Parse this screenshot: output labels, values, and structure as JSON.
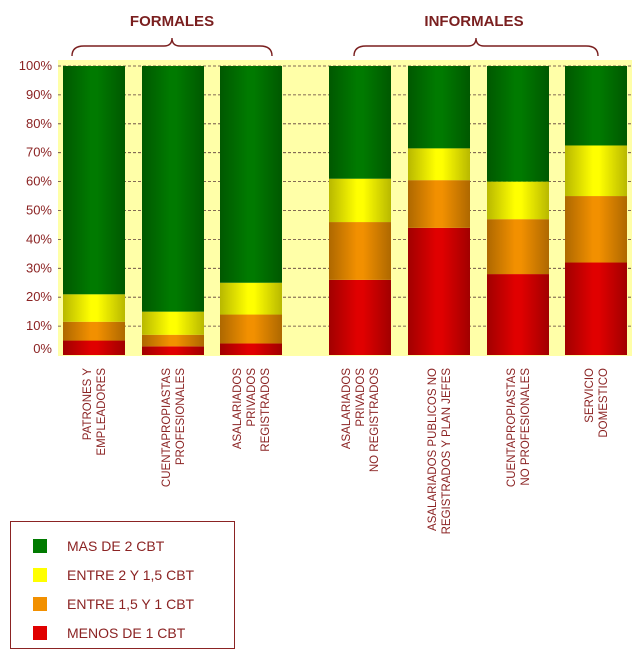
{
  "chart_data": {
    "type": "bar",
    "stacked": true,
    "groups": [
      {
        "label": "FORMALES",
        "categories": [
          0,
          1,
          2
        ]
      },
      {
        "label": "INFORMALES",
        "categories": [
          3,
          4,
          5,
          6
        ]
      }
    ],
    "categories": [
      [
        "PATRONES Y",
        "EMPLEADORES"
      ],
      [
        "CUENTAPROPIASTAS",
        "PROFESIONALES"
      ],
      [
        "ASALARIADOS",
        "PRIVADOS",
        "REGISTRADOS"
      ],
      [
        "ASALARIADOS",
        "PRIVADOS",
        "NO REGISTRADOS"
      ],
      [
        "ASALARIADOS PUBLICOS NO",
        "REGISTRADOS Y PLAN JEFES"
      ],
      [
        "CUENTAPROPIASTAS",
        "NO PROFESIONALES"
      ],
      [
        "SERVICIO",
        "DOMESTICO"
      ]
    ],
    "series": [
      {
        "name": "MENOS DE 1 CBT",
        "color": "#e00000",
        "values": [
          5,
          3,
          4,
          26,
          44,
          28,
          32
        ]
      },
      {
        "name": "ENTRE 1,5 Y 1 CBT",
        "color": "#f29000",
        "values": [
          6.5,
          4,
          10,
          20,
          16.5,
          19,
          23
        ]
      },
      {
        "name": "ENTRE 2 Y 1,5 CBT",
        "color": "#ffff00",
        "values": [
          9.5,
          8,
          11,
          15,
          11,
          13,
          17.5
        ]
      },
      {
        "name": "MAS DE 2 CBT",
        "color": "#007a00",
        "values": [
          79,
          85,
          75,
          39,
          28.5,
          40,
          27.5
        ]
      }
    ],
    "yticks": [
      "0%",
      "10%",
      "20%",
      "30%",
      "40%",
      "50%",
      "60%",
      "70%",
      "80%",
      "90%",
      "100%"
    ],
    "ylim": [
      0,
      100
    ],
    "legend_order": [
      3,
      2,
      1,
      0
    ],
    "plot_background": "#ffffa8",
    "text_color": "#8b2323"
  }
}
